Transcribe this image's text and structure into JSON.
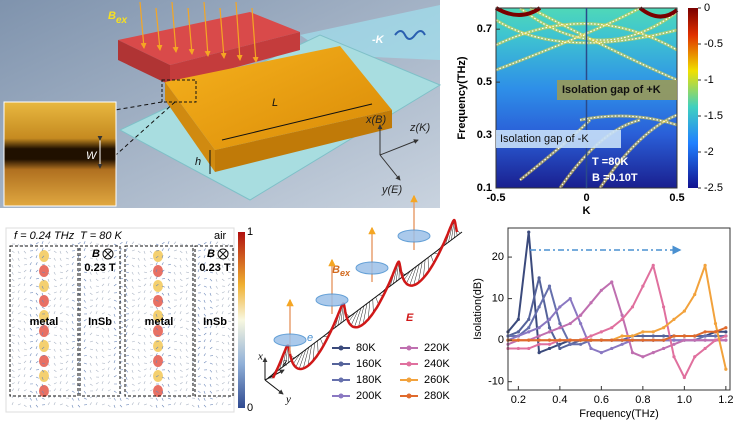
{
  "illustration": {
    "field": "B",
    "field_sub": "ex",
    "wave": "-K",
    "length": "L",
    "width": "W",
    "height": "h",
    "axis_x": "x(B)",
    "axis_z": "z(K)",
    "axis_y": "y(E)"
  },
  "field_map": {
    "frequency": "f = 0.24 THz",
    "temperature": "T = 80 K",
    "region": "air",
    "field": "B",
    "panels": [
      {
        "left": "metal",
        "right": "InSb",
        "strength": "0.23 T"
      },
      {
        "left": "metal",
        "right": "InSb",
        "strength": "0.23 T"
      }
    ],
    "colorbar_ticks": [
      1,
      0
    ]
  },
  "wave_diagram": {
    "field": "B",
    "field_sub": "ex",
    "electric": "E",
    "electron": "e",
    "axis_x": "x",
    "axis_z": "z",
    "axis_y": "y"
  },
  "chart_data": [
    {
      "type": "heatmap",
      "xlabel": "K",
      "ylabel": "Frequency(THz)",
      "xlim": [
        -0.5,
        0.5
      ],
      "ylim": [
        0.1,
        0.78
      ],
      "xticks": [
        -0.5,
        0,
        0.5
      ],
      "yticks": [
        0.1,
        0.3,
        0.5,
        0.7
      ],
      "clim": [
        -2.5,
        0
      ],
      "cticks": [
        0,
        -0.5,
        -1,
        -1.5,
        -2,
        -2.5
      ],
      "annotations": [
        "Isolation gap of +K",
        "Isolation gap of -K",
        "T =80K",
        "B =0.10T"
      ]
    },
    {
      "type": "line",
      "xlabel": "Frequency(THz)",
      "ylabel": "Isolation(dB)",
      "xlim": [
        0.15,
        1.22
      ],
      "ylim": [
        -12,
        27
      ],
      "xticks": [
        0.2,
        0.4,
        0.6,
        0.8,
        {
          "value": 1,
          "label": "1.0"
        },
        1.2
      ],
      "yticks": [
        -10,
        0,
        10,
        20
      ],
      "x": [
        0.15,
        0.2,
        0.25,
        0.3,
        0.35,
        0.4,
        0.45,
        0.5,
        0.55,
        0.6,
        0.65,
        0.7,
        0.75,
        0.8,
        0.85,
        0.9,
        0.95,
        1.0,
        1.05,
        1.1,
        1.15,
        1.2
      ],
      "series": [
        {
          "name": "80K",
          "color": "#3b4a7c",
          "values": [
            2,
            5,
            26,
            -3,
            -2,
            -1,
            0,
            0,
            0,
            0,
            0,
            0,
            0,
            0,
            0,
            0,
            1,
            1,
            1,
            1,
            2,
            2
          ]
        },
        {
          "name": "160K",
          "color": "#55639a",
          "values": [
            1,
            2,
            5,
            15,
            3,
            -2,
            -1,
            0,
            0,
            0,
            0,
            0,
            1,
            1,
            1,
            1,
            1,
            1,
            1,
            1,
            1,
            1
          ]
        },
        {
          "name": "180K",
          "color": "#6670ad",
          "values": [
            1,
            1,
            3,
            8,
            13,
            4,
            -1,
            -1,
            0,
            0,
            0,
            0,
            0,
            0,
            0,
            0,
            0,
            0,
            0,
            1,
            1,
            1
          ]
        },
        {
          "name": "200K",
          "color": "#8a78c2",
          "values": [
            0,
            1,
            2,
            3,
            5,
            8,
            10,
            4,
            -2,
            -3,
            -2,
            -1,
            0,
            0,
            0,
            0,
            0,
            0,
            0,
            0,
            0,
            0
          ]
        },
        {
          "name": "220K",
          "color": "#bf6fb0",
          "values": [
            -1,
            0,
            0,
            1,
            2,
            3,
            4,
            6,
            9,
            12,
            14,
            6,
            -3,
            -4,
            -3,
            -2,
            -1,
            0,
            0,
            0,
            0,
            0
          ]
        },
        {
          "name": "240K",
          "color": "#e0709e",
          "values": [
            -2,
            -2,
            -2,
            -1,
            -1,
            0,
            0,
            0,
            1,
            2,
            3,
            5,
            8,
            13,
            18,
            8,
            -4,
            -9,
            -4,
            -2,
            0,
            1
          ]
        },
        {
          "name": "260K",
          "color": "#f2a23c",
          "values": [
            0,
            0,
            0,
            0,
            0,
            0,
            0,
            0,
            0,
            0,
            0,
            1,
            1,
            2,
            2,
            3,
            5,
            7,
            11,
            18,
            4,
            -7
          ]
        },
        {
          "name": "280K",
          "color": "#e06a2c",
          "values": [
            0,
            0,
            0,
            0,
            0,
            0,
            0,
            0,
            0,
            0,
            0,
            0,
            0,
            0,
            0,
            0,
            1,
            1,
            1,
            2,
            2,
            3
          ]
        }
      ]
    }
  ]
}
